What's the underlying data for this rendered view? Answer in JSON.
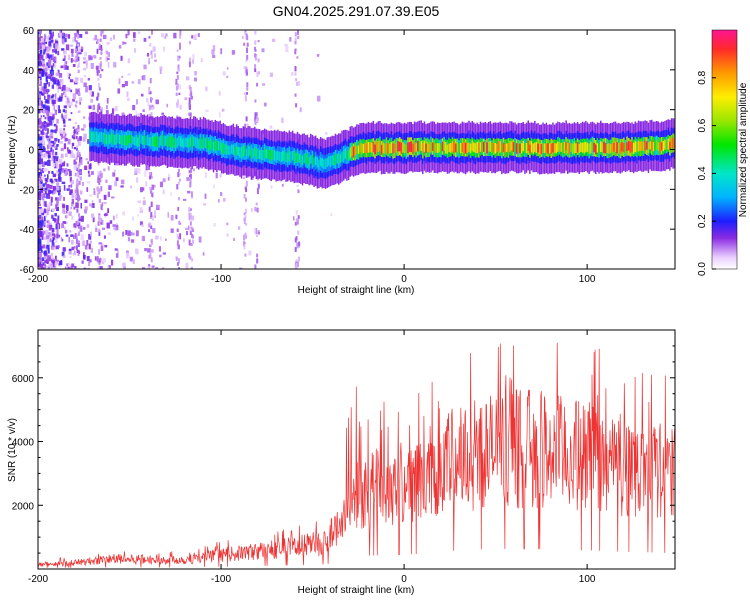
{
  "figure": {
    "title": "GN04.2025.291.07.39.E05"
  },
  "chart_data": [
    {
      "type": "heatmap",
      "xlabel": "Height of straight line (km)",
      "ylabel": "Frequency (Hz)",
      "xlim": [
        -200,
        148
      ],
      "ylim": [
        -60,
        60
      ],
      "xticks": [
        -200,
        -100,
        0,
        100
      ],
      "yticks": [
        60,
        40,
        20,
        0,
        -20,
        -40,
        -60
      ],
      "colorbar": {
        "label": "Normalized spectral amplitude",
        "range": [
          0,
          1
        ],
        "ticks": [
          0.0,
          0.2,
          0.4,
          0.6,
          0.8
        ]
      },
      "ridge": {
        "x": [
          -170,
          -150,
          -130,
          -110,
          -100,
          -90,
          -80,
          -70,
          -60,
          -50,
          -45,
          -40,
          -35,
          -30,
          -25,
          -20,
          -10,
          0,
          20,
          40,
          60,
          80,
          100,
          120,
          140,
          148
        ],
        "frequency": [
          6,
          5,
          4,
          3,
          1,
          -1,
          -2,
          -3,
          -4,
          -6,
          -7,
          -6,
          -4,
          -2,
          0,
          1,
          1,
          1,
          1,
          1,
          1,
          1,
          1,
          1,
          2,
          3
        ]
      },
      "grid": false
    },
    {
      "type": "line",
      "xlabel": "Height of straight line (km)",
      "ylabel": "SNR (10 * v/v)",
      "xlim": [
        -200,
        148
      ],
      "ylim": [
        0,
        7500
      ],
      "xticks": [
        -200,
        -100,
        0,
        100
      ],
      "yticks": [
        2000,
        4000,
        6000
      ],
      "color": "#ee3333",
      "envelope": {
        "x": [
          -200,
          -180,
          -160,
          -140,
          -120,
          -100,
          -80,
          -60,
          -45,
          -35,
          -30,
          -25,
          -20,
          -10,
          0,
          10,
          20,
          30,
          40,
          50,
          60,
          70,
          80,
          90,
          100,
          110,
          120,
          130,
          140,
          148
        ],
        "snr": [
          150,
          220,
          350,
          330,
          320,
          480,
          620,
          780,
          900,
          1500,
          2100,
          2600,
          2800,
          2900,
          3000,
          3200,
          3600,
          3900,
          4100,
          4150,
          4200,
          4200,
          4100,
          4000,
          3900,
          3800,
          3600,
          3500,
          3400,
          3300
        ]
      },
      "grid": false
    }
  ]
}
